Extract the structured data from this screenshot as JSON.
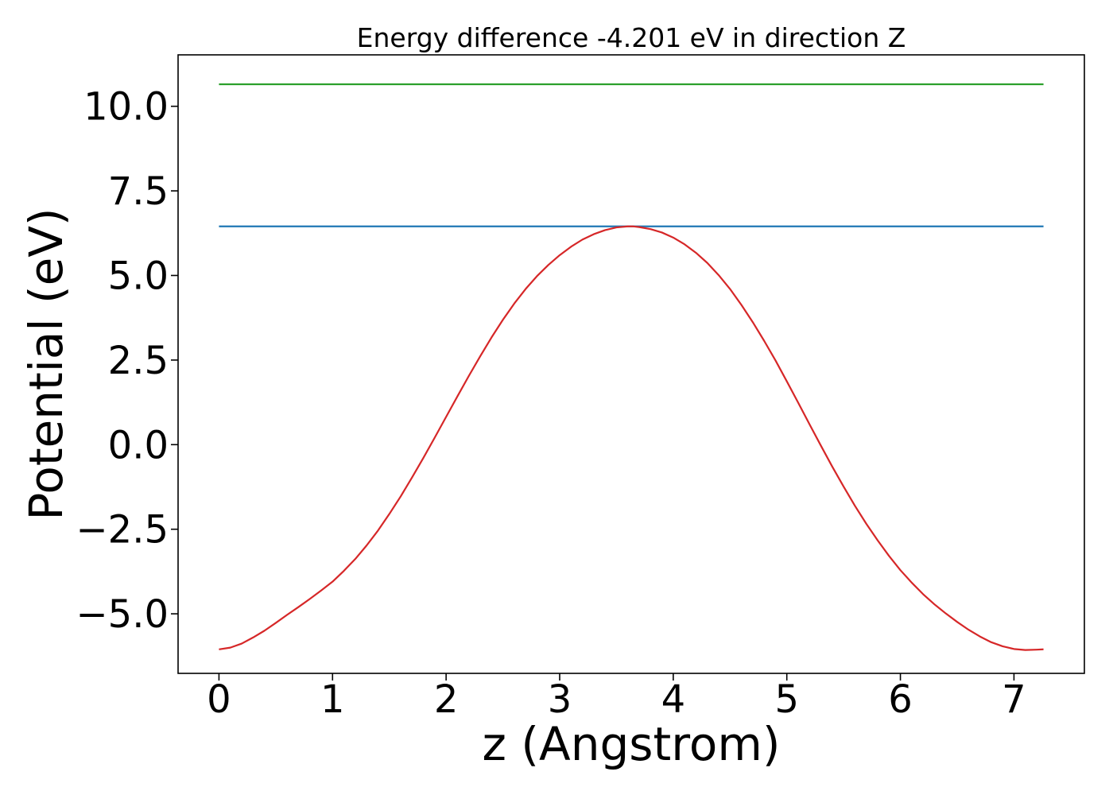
{
  "chart_data": {
    "type": "line",
    "title": "Energy difference -4.201 eV in direction Z",
    "xlabel": "z (Angstrom)",
    "ylabel": "Potential (eV)",
    "xlim": [
      -0.36,
      7.62
    ],
    "ylim": [
      -6.76,
      11.52
    ],
    "xticks": [
      0,
      1,
      2,
      3,
      4,
      5,
      6,
      7
    ],
    "xtick_labels": [
      "0",
      "1",
      "2",
      "3",
      "4",
      "5",
      "6",
      "7"
    ],
    "yticks": [
      -5.0,
      -2.5,
      0.0,
      2.5,
      5.0,
      7.5,
      10.0
    ],
    "ytick_labels": [
      "−5.0",
      "−2.5",
      "0.0",
      "2.5",
      "5.0",
      "7.5",
      "10.0"
    ],
    "grid": false,
    "series": [
      {
        "color": "#2ca02c",
        "x": [
          0,
          7.26
        ],
        "y": [
          10.65,
          10.65
        ]
      },
      {
        "color": "#1f77b4",
        "x": [
          0,
          7.26
        ],
        "y": [
          6.45,
          6.45
        ]
      },
      {
        "color": "#d62728",
        "x": [
          0,
          0.1,
          0.2,
          0.3,
          0.4,
          0.5,
          0.6,
          0.7,
          0.8,
          0.9,
          1.0,
          1.1,
          1.2,
          1.3,
          1.4,
          1.5,
          1.6,
          1.7,
          1.8,
          1.9,
          2.0,
          2.1,
          2.2,
          2.3,
          2.4,
          2.5,
          2.6,
          2.7,
          2.8,
          2.9,
          3.0,
          3.1,
          3.2,
          3.3,
          3.4,
          3.5,
          3.6,
          3.65,
          3.7,
          3.8,
          3.9,
          4.0,
          4.1,
          4.2,
          4.3,
          4.4,
          4.5,
          4.6,
          4.7,
          4.8,
          4.9,
          5.0,
          5.1,
          5.2,
          5.3,
          5.4,
          5.5,
          5.6,
          5.7,
          5.8,
          5.9,
          6.0,
          6.1,
          6.2,
          6.3,
          6.4,
          6.5,
          6.6,
          6.7,
          6.8,
          6.9,
          7.0,
          7.1,
          7.2,
          7.26
        ],
        "y": [
          -6.05,
          -6.0,
          -5.88,
          -5.7,
          -5.5,
          -5.27,
          -5.03,
          -4.8,
          -4.56,
          -4.31,
          -4.05,
          -3.73,
          -3.38,
          -2.98,
          -2.54,
          -2.05,
          -1.53,
          -0.97,
          -0.39,
          0.21,
          0.82,
          1.43,
          2.03,
          2.61,
          3.17,
          3.69,
          4.17,
          4.6,
          4.98,
          5.31,
          5.6,
          5.85,
          6.06,
          6.22,
          6.34,
          6.42,
          6.45,
          6.45,
          6.43,
          6.37,
          6.27,
          6.12,
          5.92,
          5.67,
          5.37,
          5.01,
          4.6,
          4.13,
          3.62,
          3.07,
          2.49,
          1.87,
          1.24,
          0.6,
          -0.03,
          -0.65,
          -1.24,
          -1.81,
          -2.34,
          -2.83,
          -3.29,
          -3.71,
          -4.08,
          -4.42,
          -4.72,
          -4.99,
          -5.24,
          -5.47,
          -5.67,
          -5.84,
          -5.96,
          -6.04,
          -6.07,
          -6.06,
          -6.05
        ]
      }
    ]
  }
}
